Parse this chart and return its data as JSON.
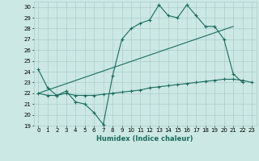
{
  "xlabel": "Humidex (Indice chaleur)",
  "ylabel": "",
  "xlim": [
    -0.5,
    23.5
  ],
  "ylim": [
    19,
    30.5
  ],
  "yticks": [
    19,
    20,
    21,
    22,
    23,
    24,
    25,
    26,
    27,
    28,
    29,
    30
  ],
  "xticks": [
    0,
    1,
    2,
    3,
    4,
    5,
    6,
    7,
    8,
    9,
    10,
    11,
    12,
    13,
    14,
    15,
    16,
    17,
    18,
    19,
    20,
    21,
    22,
    23
  ],
  "bg_color": "#cce8e4",
  "grid_color": "#aacccc",
  "line_color": "#1a6b5e",
  "line1_x": [
    0,
    1,
    2,
    3,
    4,
    5,
    6,
    7,
    8,
    9,
    10,
    11,
    12,
    13,
    14,
    15,
    16,
    17,
    18,
    19,
    20,
    21,
    22
  ],
  "line1_y": [
    24.2,
    22.5,
    21.8,
    22.2,
    21.2,
    21.0,
    20.2,
    19.1,
    23.6,
    27.0,
    28.0,
    28.5,
    28.8,
    30.2,
    29.2,
    29.0,
    30.2,
    29.2,
    28.2,
    28.2,
    27.0,
    23.8,
    23.0
  ],
  "line2_x": [
    0,
    1,
    2,
    3,
    4,
    5,
    6,
    7,
    8,
    9,
    10,
    11,
    12,
    13,
    14,
    15,
    16,
    17,
    18,
    19,
    20,
    21,
    22,
    23
  ],
  "line2_y": [
    22.0,
    21.8,
    21.8,
    22.0,
    21.8,
    21.8,
    21.8,
    21.9,
    22.0,
    22.1,
    22.2,
    22.3,
    22.5,
    22.6,
    22.7,
    22.8,
    22.9,
    23.0,
    23.1,
    23.2,
    23.3,
    23.3,
    23.2,
    23.0
  ],
  "line3_x": [
    0,
    21
  ],
  "line3_y": [
    22.0,
    28.2
  ]
}
